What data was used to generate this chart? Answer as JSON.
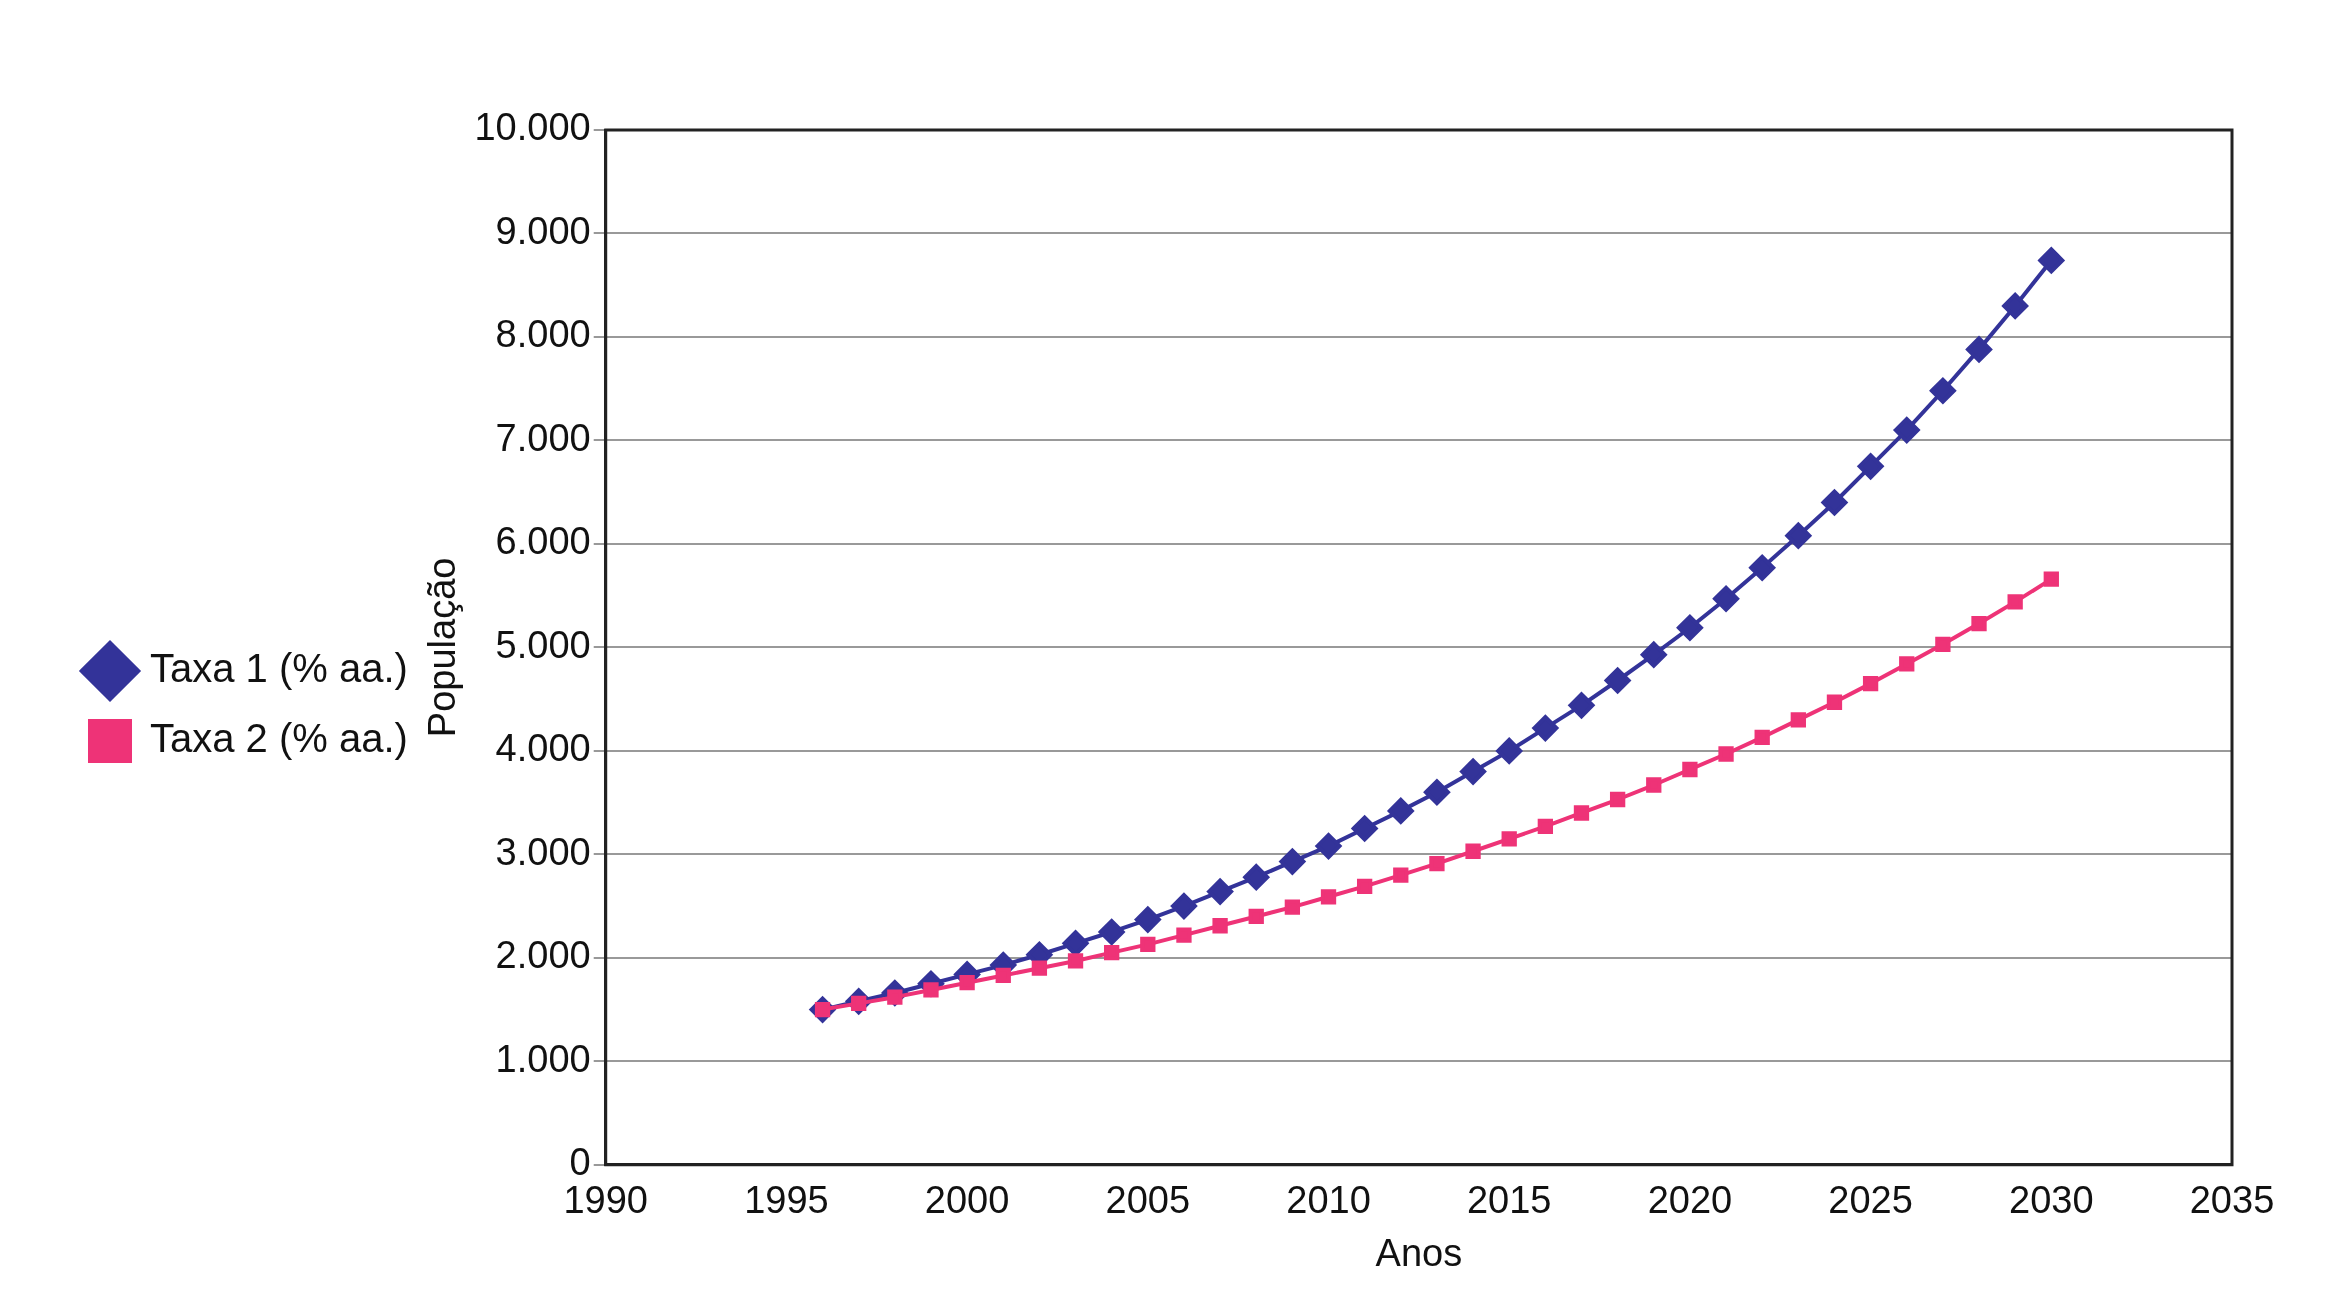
{
  "chart_data": {
    "type": "line",
    "xlabel": "Anos",
    "ylabel": "População",
    "x": [
      1996,
      1997,
      1998,
      1999,
      2000,
      2001,
      2002,
      2003,
      2004,
      2005,
      2006,
      2007,
      2008,
      2009,
      2010,
      2011,
      2012,
      2013,
      2014,
      2015,
      2016,
      2017,
      2018,
      2019,
      2020,
      2021,
      2022,
      2023,
      2024,
      2025,
      2026,
      2027,
      2028,
      2029,
      2030
    ],
    "series": [
      {
        "name": "Taxa 1 (% aa.)",
        "color": "#333399",
        "marker": "diamond",
        "values": [
          1500,
          1580,
          1660,
          1750,
          1840,
          1930,
          2030,
          2140,
          2250,
          2370,
          2500,
          2640,
          2780,
          2930,
          3080,
          3250,
          3420,
          3600,
          3800,
          4000,
          4220,
          4440,
          4680,
          4930,
          5190,
          5470,
          5770,
          6080,
          6400,
          6750,
          7100,
          7480,
          7880,
          8300,
          8740
        ]
      },
      {
        "name": "Taxa 2 (% aa.)",
        "color": "#ee3377",
        "marker": "square",
        "values": [
          1500,
          1560,
          1620,
          1690,
          1760,
          1830,
          1900,
          1970,
          2050,
          2130,
          2220,
          2310,
          2400,
          2490,
          2590,
          2690,
          2800,
          2910,
          3030,
          3150,
          3270,
          3400,
          3530,
          3670,
          3820,
          3970,
          4130,
          4300,
          4470,
          4650,
          4840,
          5030,
          5230,
          5440,
          5660
        ]
      }
    ],
    "xlim": [
      1990,
      2035
    ],
    "xticks": [
      1990,
      1995,
      2000,
      2005,
      2010,
      2015,
      2020,
      2025,
      2030,
      2035
    ],
    "ylim": [
      0,
      10000
    ],
    "yticks": [
      0,
      {
        "value": 1000,
        "label": "1.000"
      },
      {
        "value": 2000,
        "label": "2.000"
      },
      {
        "value": 3000,
        "label": "3.000"
      },
      {
        "value": 4000,
        "label": "4.000"
      },
      {
        "value": 5000,
        "label": "5.000"
      },
      {
        "value": 6000,
        "label": "6.000"
      },
      {
        "value": 7000,
        "label": "7.000"
      },
      {
        "value": 8000,
        "label": "8.000"
      },
      {
        "value": 9000,
        "label": "9.000"
      },
      {
        "value": 10000,
        "label": "10.000"
      }
    ],
    "grid": "y",
    "legend": "left",
    "line_style": "solid"
  }
}
